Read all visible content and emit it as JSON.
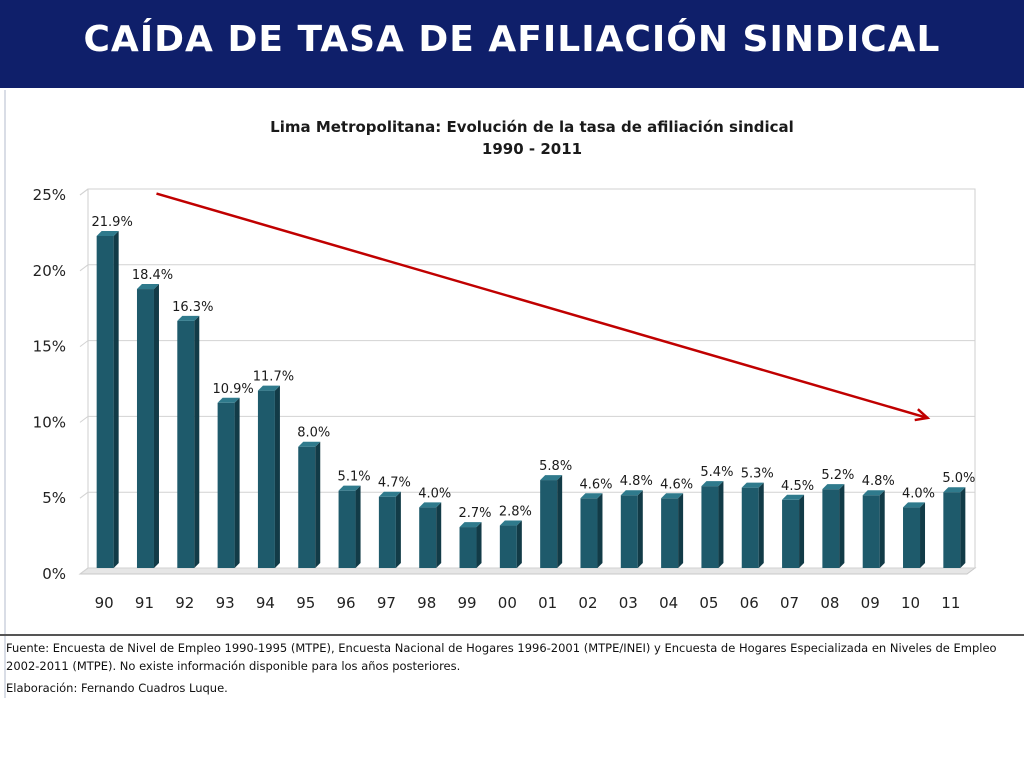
{
  "header": {
    "title": "CAÍDA DE TASA DE AFILIACIÓN SINDICAL"
  },
  "colors": {
    "header_bg": "#0f1f6a",
    "bar": "#1e5a6b",
    "bar_side": "#123b47",
    "bar_top": "#2f7a8c",
    "trend_arrow": "#c00000"
  },
  "chart_data": {
    "type": "bar",
    "title": "Lima Metropolitana: Evolución de la tasa de afiliación sindical",
    "subtitle": "1990 - 2011",
    "xlabel": "",
    "ylabel": "",
    "categories": [
      "90",
      "91",
      "92",
      "93",
      "94",
      "95",
      "96",
      "97",
      "98",
      "99",
      "00",
      "01",
      "02",
      "03",
      "04",
      "05",
      "06",
      "07",
      "08",
      "09",
      "10",
      "11"
    ],
    "values": [
      21.9,
      18.4,
      16.3,
      10.9,
      11.7,
      8.0,
      5.1,
      4.7,
      4.0,
      2.7,
      2.8,
      5.8,
      4.6,
      4.8,
      4.6,
      5.4,
      5.3,
      4.5,
      5.2,
      4.8,
      4.0,
      5.0
    ],
    "data_labels": [
      "21.9%",
      "18.4%",
      "16.3%",
      "10.9%",
      "11.7%",
      "8.0%",
      "5.1%",
      "4.7%",
      "4.0%",
      "2.7%",
      "2.8%",
      "5.8%",
      "4.6%",
      "4.8%",
      "4.6%",
      "5.4%",
      "5.3%",
      "4.5%",
      "5.2%",
      "4.8%",
      "4.0%",
      "5.0%"
    ],
    "ylim": [
      0,
      25
    ],
    "yticks": [
      0,
      5,
      10,
      15,
      20,
      25
    ],
    "ytick_labels": [
      "0%",
      "5%",
      "10%",
      "15%",
      "20%",
      "25%"
    ],
    "grid": true,
    "legend": "none",
    "annotations": [
      {
        "type": "trend-arrow",
        "from": {
          "x": "91",
          "y": 24.7
        },
        "to": {
          "x": "10",
          "y": 9.9
        }
      }
    ]
  },
  "footnote": {
    "source": "Fuente: Encuesta de Nivel de Empleo 1990-1995 (MTPE), Encuesta Nacional de Hogares 1996-2001 (MTPE/INEI) y Encuesta de  Hogares Especializada en Niveles de Empleo 2002-2011 (MTPE). No existe información disponible para los años posteriores.",
    "credit": "Elaboración: Fernando Cuadros Luque."
  }
}
